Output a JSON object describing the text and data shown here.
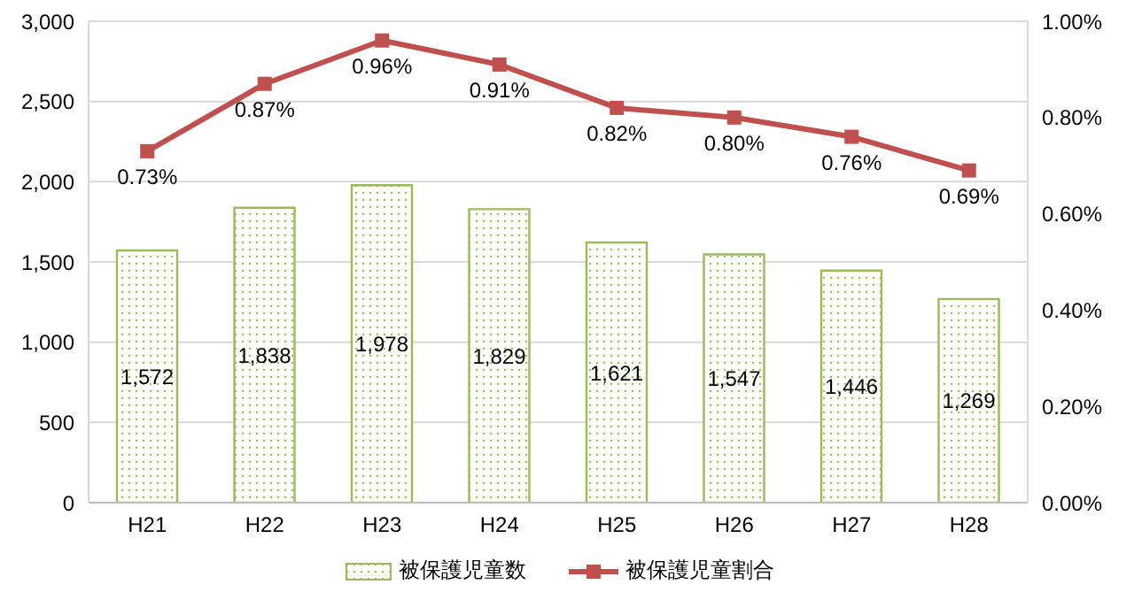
{
  "chart_data": {
    "type": "bar",
    "categories": [
      "H21",
      "H22",
      "H23",
      "H24",
      "H25",
      "H26",
      "H27",
      "H28"
    ],
    "series": [
      {
        "name": "被保護児童数",
        "color": "#9bbb59",
        "values": [
          1572,
          1838,
          1978,
          1829,
          1621,
          1547,
          1446,
          1269
        ],
        "value_labels": [
          "1,572",
          "1,838",
          "1,978",
          "1,829",
          "1,621",
          "1,547",
          "1,446",
          "1,269"
        ]
      },
      {
        "name": "被保護児童割合",
        "type": "line",
        "axis": "y2",
        "color": "#c0504d",
        "values": [
          0.73,
          0.87,
          0.96,
          0.91,
          0.82,
          0.8,
          0.76,
          0.69
        ],
        "value_labels": [
          "0.73%",
          "0.87%",
          "0.96%",
          "0.91%",
          "0.82%",
          "0.80%",
          "0.76%",
          "0.69%"
        ]
      }
    ],
    "ylim": [
      0,
      3000
    ],
    "yticks": [
      {
        "value": 0,
        "label": "0"
      },
      {
        "value": 500,
        "label": "500"
      },
      {
        "value": 1000,
        "label": "1,000"
      },
      {
        "value": 1500,
        "label": "1,500"
      },
      {
        "value": 2000,
        "label": "2,000"
      },
      {
        "value": 2500,
        "label": "2,500"
      },
      {
        "value": 3000,
        "label": "3,000"
      }
    ],
    "y2lim": [
      0,
      1
    ],
    "y2ticks": [
      {
        "value": 0,
        "label": "0.00%"
      },
      {
        "value": 0.2,
        "label": "0.20%"
      },
      {
        "value": 0.4,
        "label": "0.40%"
      },
      {
        "value": 0.6,
        "label": "0.60%"
      },
      {
        "value": 0.8,
        "label": "0.80%"
      },
      {
        "value": 1,
        "label": "1.00%"
      }
    ],
    "grid": "y",
    "legend": "bottom",
    "marker": "square",
    "line_style": "solid"
  }
}
